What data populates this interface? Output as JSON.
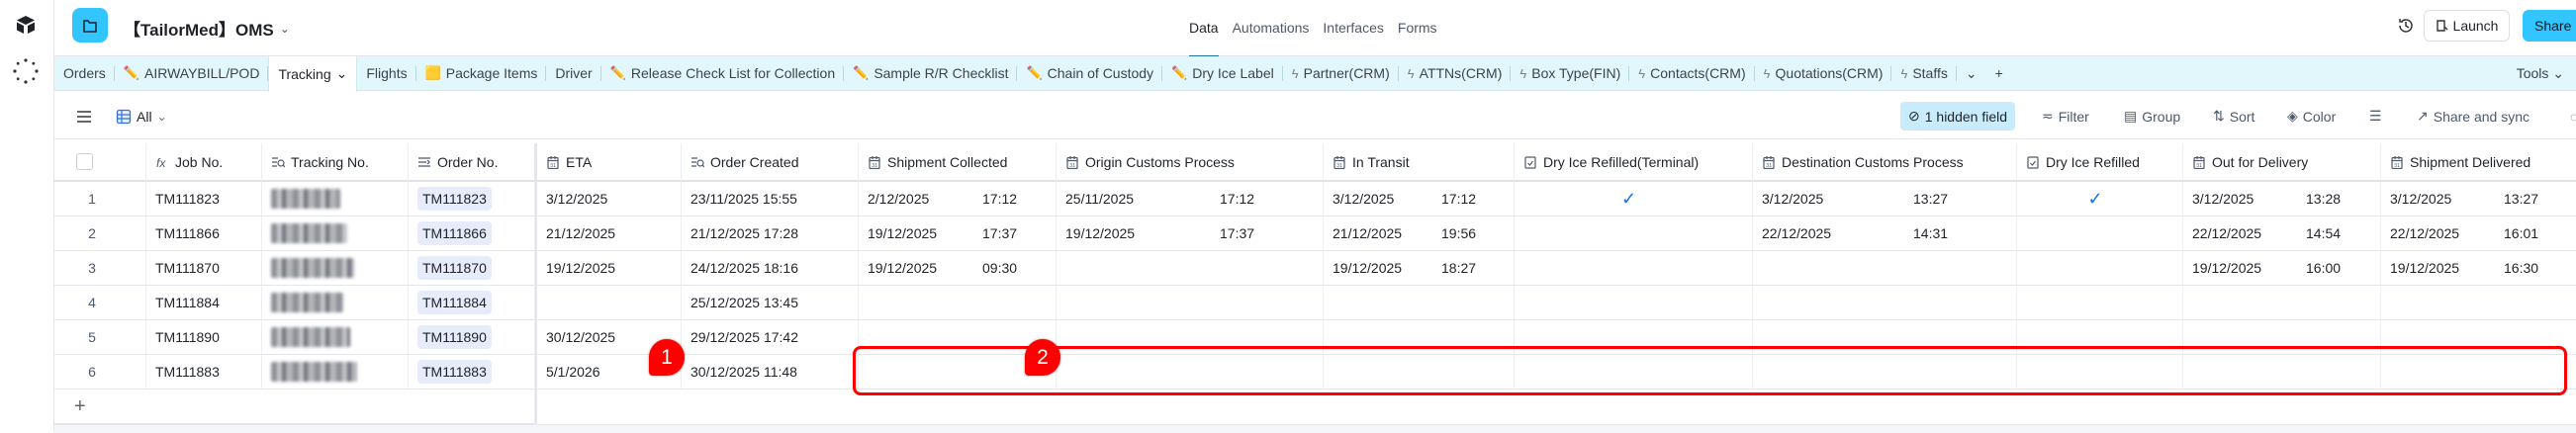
{
  "app": {
    "title": "【TailorMed】OMS"
  },
  "topnav": [
    "Data",
    "Automations",
    "Interfaces",
    "Forms"
  ],
  "topnav_active": "Data",
  "header_buttons": {
    "launch": "Launch",
    "share": "Share"
  },
  "tabs": [
    {
      "label": "Orders",
      "icon": ""
    },
    {
      "label": "AIRWAYBILL/POD",
      "icon": "pencil-icon"
    },
    {
      "label": "Tracking",
      "icon": "",
      "active": true
    },
    {
      "label": "Flights",
      "icon": ""
    },
    {
      "label": "Package Items",
      "icon": "folder-icon"
    },
    {
      "label": "Driver",
      "icon": ""
    },
    {
      "label": "Release Check List for Collection",
      "icon": "pencil-icon"
    },
    {
      "label": "Sample R/R Checklist",
      "icon": "pencil-icon"
    },
    {
      "label": "Chain of Custody",
      "icon": "pencil-icon"
    },
    {
      "label": "Dry Ice Label",
      "icon": "pencil-icon"
    },
    {
      "label": "Partner(CRM)",
      "icon": "lightning-icon"
    },
    {
      "label": "ATTNs(CRM)",
      "icon": "lightning-icon"
    },
    {
      "label": "Box Type(FIN)",
      "icon": "lightning-icon"
    },
    {
      "label": "Contacts(CRM)",
      "icon": "lightning-icon"
    },
    {
      "label": "Quotations(CRM)",
      "icon": "lightning-icon"
    },
    {
      "label": "Staffs",
      "icon": "lightning-icon"
    }
  ],
  "tools_label": "Tools",
  "toolbar": {
    "view_name": "All",
    "hidden_fields": "1 hidden field",
    "filter": "Filter",
    "group": "Group",
    "sort": "Sort",
    "color": "Color",
    "share_sync": "Share and sync"
  },
  "columns": [
    {
      "label": "Job No.",
      "icon": "formula-icon",
      "type": "text"
    },
    {
      "label": "Tracking No.",
      "icon": "lookup-icon",
      "type": "redacted"
    },
    {
      "label": "Order No.",
      "icon": "link-icon",
      "type": "pill"
    },
    {
      "label": "ETA",
      "icon": "calendar-icon",
      "type": "text"
    },
    {
      "label": "Order Created",
      "icon": "lookup-icon",
      "type": "text"
    },
    {
      "label": "Shipment Collected",
      "icon": "calendar-icon",
      "type": "datetime"
    },
    {
      "label": "Origin Customs Process",
      "icon": "calendar-icon",
      "type": "datetime"
    },
    {
      "label": "In Transit",
      "icon": "calendar-icon",
      "type": "datetime"
    },
    {
      "label": "Dry Ice Refilled(Terminal)",
      "icon": "checkbox-icon",
      "type": "check"
    },
    {
      "label": "Destination Customs Process",
      "icon": "calendar-icon",
      "type": "datetime"
    },
    {
      "label": "Dry Ice Refilled",
      "icon": "checkbox-icon",
      "type": "check"
    },
    {
      "label": "Out for Delivery",
      "icon": "calendar-icon",
      "type": "datetime"
    },
    {
      "label": "Shipment Delivered",
      "icon": "calendar-icon",
      "type": "datetime"
    }
  ],
  "rows": [
    {
      "num": "1",
      "cells": [
        "TM111823",
        null,
        "TM111823",
        "3/12/2025",
        "23/11/2025 15:55",
        {
          "date": "2/12/2025",
          "time": "17:12"
        },
        {
          "date": "25/11/2025",
          "time": "17:12"
        },
        {
          "date": "3/12/2025",
          "time": "17:12"
        },
        true,
        {
          "date": "3/12/2025",
          "time": "13:27"
        },
        true,
        {
          "date": "3/12/2025",
          "time": "13:28"
        },
        {
          "date": "3/12/2025",
          "time": "13:27"
        }
      ]
    },
    {
      "num": "2",
      "cells": [
        "TM111866",
        null,
        "TM111866",
        "21/12/2025",
        "21/12/2025 17:28",
        {
          "date": "19/12/2025",
          "time": "17:37"
        },
        {
          "date": "19/12/2025",
          "time": "17:37"
        },
        {
          "date": "21/12/2025",
          "time": "19:56"
        },
        false,
        {
          "date": "22/12/2025",
          "time": "14:31"
        },
        false,
        {
          "date": "22/12/2025",
          "time": "14:54"
        },
        {
          "date": "22/12/2025",
          "time": "16:01"
        }
      ]
    },
    {
      "num": "3",
      "cells": [
        "TM111870",
        null,
        "TM111870",
        "19/12/2025",
        "24/12/2025 18:16",
        {
          "date": "19/12/2025",
          "time": "09:30"
        },
        null,
        {
          "date": "19/12/2025",
          "time": "18:27"
        },
        false,
        null,
        false,
        {
          "date": "19/12/2025",
          "time": "16:00"
        },
        {
          "date": "19/12/2025",
          "time": "16:30"
        }
      ]
    },
    {
      "num": "4",
      "cells": [
        "TM111884",
        null,
        "TM111884",
        "",
        "25/12/2025 13:45",
        null,
        null,
        null,
        false,
        null,
        false,
        null,
        null
      ]
    },
    {
      "num": "5",
      "cells": [
        "TM111890",
        null,
        "TM111890",
        "30/12/2025",
        "29/12/2025 17:42",
        null,
        null,
        null,
        false,
        null,
        false,
        null,
        null
      ]
    },
    {
      "num": "6",
      "cells": [
        "TM111883",
        null,
        "TM111883",
        "5/1/2026",
        "30/12/2025 11:48",
        null,
        null,
        null,
        false,
        null,
        false,
        null,
        null
      ]
    }
  ],
  "annotations": [
    {
      "label": "1"
    },
    {
      "label": "2"
    }
  ],
  "colors": {
    "accent": "#33c5ff",
    "tabbar": "#e1f7fb",
    "annotation": "#ff0000",
    "check": "#1a73e8"
  }
}
